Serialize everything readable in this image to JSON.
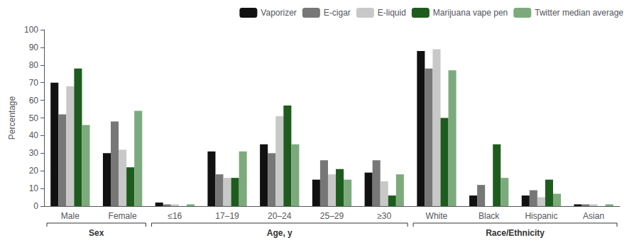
{
  "chart_data": {
    "type": "bar",
    "ylabel": "Percentage",
    "categories": [
      "Male",
      "Female",
      "≤16",
      "17–19",
      "20–24",
      "25–29",
      "≥30",
      "White",
      "Black",
      "Hispanic",
      "Asian"
    ],
    "category_groups": [
      {
        "label": "Sex",
        "categories": [
          "Male",
          "Female"
        ]
      },
      {
        "label": "Age, y",
        "categories": [
          "≤16",
          "17–19",
          "20–24",
          "25–29",
          "≥30"
        ]
      },
      {
        "label": "Race/Ethnicity",
        "categories": [
          "White",
          "Black",
          "Hispanic",
          "Asian"
        ]
      }
    ],
    "series": [
      {
        "name": "Vaporizer",
        "color": "#111111",
        "values": [
          70,
          30,
          2,
          31,
          35,
          15,
          19,
          88,
          6,
          6,
          1
        ]
      },
      {
        "name": "E-cigar",
        "color": "#777777",
        "values": [
          52,
          48,
          1,
          18,
          30,
          26,
          26,
          78,
          12,
          9,
          1
        ]
      },
      {
        "name": "E-liquid",
        "color": "#c8c8c8",
        "values": [
          68,
          32,
          1,
          16,
          51,
          18,
          14,
          89,
          0,
          5,
          1
        ]
      },
      {
        "name": "Marijuana vape pen",
        "color": "#1e5c1e",
        "values": [
          78,
          22,
          0,
          16,
          57,
          21,
          6,
          50,
          35,
          15,
          0
        ]
      },
      {
        "name": "Twitter median average",
        "color": "#7daa7d",
        "values": [
          46,
          54,
          1,
          31,
          35,
          15,
          18,
          77,
          16,
          7,
          1
        ]
      }
    ],
    "ylim": [
      0,
      100
    ],
    "yticks": [
      0,
      10,
      20,
      30,
      40,
      50,
      60,
      70,
      80,
      90,
      100
    ],
    "grid": false,
    "legend": "upper right"
  }
}
